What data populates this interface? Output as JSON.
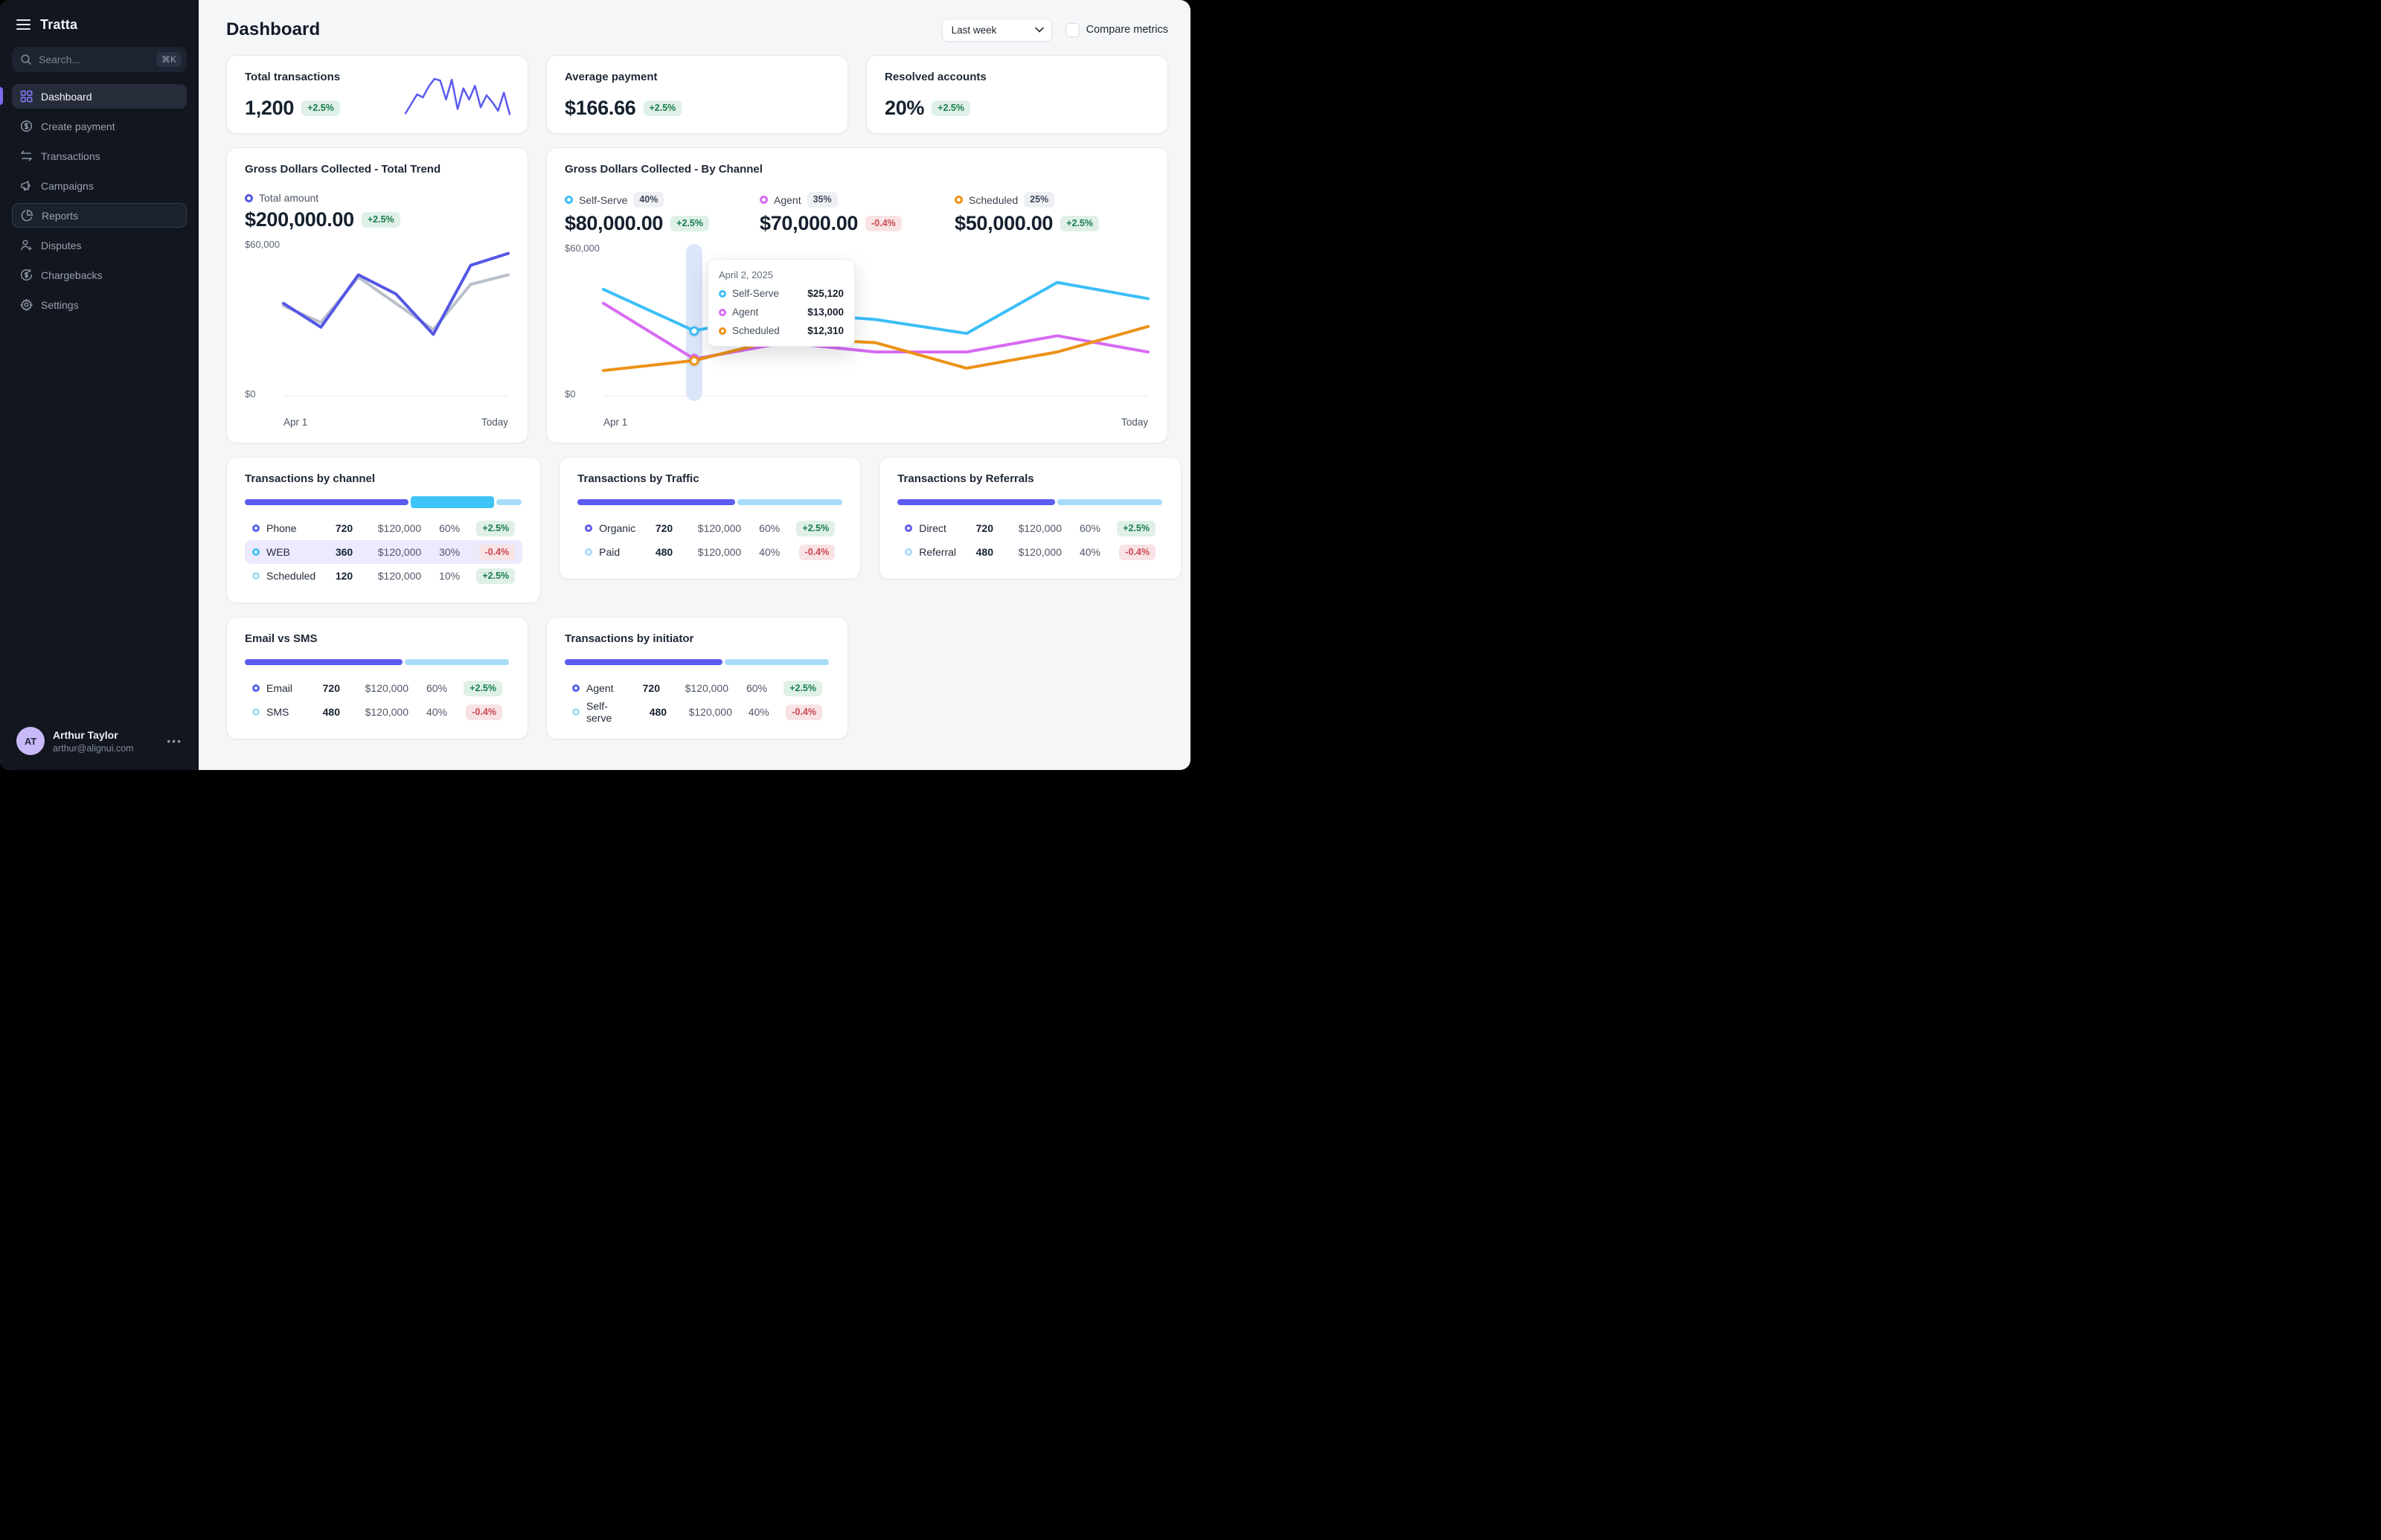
{
  "app": {
    "brand": "Tratta"
  },
  "sidebar": {
    "search": {
      "placeholder": "Search...",
      "shortcut": "⌘K"
    },
    "items": [
      {
        "label": "Dashboard"
      },
      {
        "label": "Create payment"
      },
      {
        "label": "Transactions"
      },
      {
        "label": "Campaigns"
      },
      {
        "label": "Reports"
      },
      {
        "label": "Disputes"
      },
      {
        "label": "Chargebacks"
      },
      {
        "label": "Settings"
      }
    ],
    "user": {
      "initials": "AT",
      "name": "Arthur Taylor",
      "email": "arthur@alignui.com",
      "menu": "•••"
    }
  },
  "header": {
    "title": "Dashboard",
    "range": "Last week",
    "compare": "Compare metrics"
  },
  "kpis": [
    {
      "title": "Total transactions",
      "value": "1,200",
      "delta": "+2.5%"
    },
    {
      "title": "Average payment",
      "value": "$166.66",
      "delta": "+2.5%"
    },
    {
      "title": "Resolved accounts",
      "value": "20%",
      "delta": "+2.5%"
    }
  ],
  "trend": {
    "title": "Gross Dollars Collected - Total Trend",
    "legend": "Total amount",
    "value": "$200,000.00",
    "delta": "+2.5%",
    "y_top": "$60,000",
    "y_bottom": "$0",
    "x_start": "Apr 1",
    "x_end": "Today"
  },
  "channel": {
    "title": "Gross Dollars Collected - By Channel",
    "stats": [
      {
        "label": "Self-Serve",
        "share": "40%",
        "value": "$80,000.00",
        "delta": "+2.5%",
        "color": "#3BBEF7"
      },
      {
        "label": "Agent",
        "share": "35%",
        "value": "$70,000.00",
        "delta": "-0.4%",
        "color": "#D76AF2"
      },
      {
        "label": "Scheduled",
        "share": "25%",
        "value": "$50,000.00",
        "delta": "+2.5%",
        "color": "#EC9215"
      }
    ],
    "tooltip": {
      "date": "April 2, 2025",
      "rows": [
        {
          "label": "Self-Serve",
          "value": "$25,120",
          "color": "#3BBEF7"
        },
        {
          "label": "Agent",
          "value": "$13,000",
          "color": "#D76AF2"
        },
        {
          "label": "Scheduled",
          "value": "$12,310",
          "color": "#EC9215"
        }
      ]
    },
    "y_top": "$60,000",
    "y_bottom": "$0",
    "x_start": "Apr 1",
    "x_end": "Today"
  },
  "tables": {
    "channel": {
      "title": "Transactions by channel",
      "bar": [
        {
          "pct": 59,
          "color": "#5B5BEF"
        },
        {
          "pct": 30,
          "color": "#3EC3F7",
          "tall": true
        },
        {
          "pct": 9,
          "color": "#A6DCF8"
        }
      ],
      "rows": [
        {
          "label": "Phone",
          "color": "#5B5BEF",
          "count": "720",
          "amount": "$120,000",
          "pct": "60%",
          "delta": "+2.5%"
        },
        {
          "label": "WEB",
          "color": "#3EC3F7",
          "count": "360",
          "amount": "$120,000",
          "pct": "30%",
          "delta": "-0.4%"
        },
        {
          "label": "Scheduled",
          "color": "#A6DCF8",
          "count": "120",
          "amount": "$120,000",
          "pct": "10%",
          "delta": "+2.5%"
        }
      ]
    },
    "traffic": {
      "title": "Transactions by Traffic",
      "bar": [
        {
          "pct": 59.5,
          "color": "#5B5BEF"
        },
        {
          "pct": 39.5,
          "color": "#A6DCF8"
        }
      ],
      "rows": [
        {
          "label": "Organic",
          "color": "#5B5BEF",
          "count": "720",
          "amount": "$120,000",
          "pct": "60%",
          "delta": "+2.5%"
        },
        {
          "label": "Paid",
          "color": "#A6DCF8",
          "count": "480",
          "amount": "$120,000",
          "pct": "40%",
          "delta": "-0.4%"
        }
      ]
    },
    "referrals": {
      "title": "Transactions by Referrals",
      "bar": [
        {
          "pct": 59.5,
          "color": "#5B5BEF"
        },
        {
          "pct": 39.5,
          "color": "#A6DCF8"
        }
      ],
      "rows": [
        {
          "label": "Direct",
          "color": "#5B5BEF",
          "count": "720",
          "amount": "$120,000",
          "pct": "60%",
          "delta": "+2.5%"
        },
        {
          "label": "Referral",
          "color": "#A6DCF8",
          "count": "480",
          "amount": "$120,000",
          "pct": "40%",
          "delta": "-0.4%"
        }
      ]
    },
    "emailsms": {
      "title": "Email vs SMS",
      "bar": [
        {
          "pct": 59.5,
          "color": "#5B5BEF"
        },
        {
          "pct": 39.5,
          "color": "#A6DCF8"
        }
      ],
      "rows": [
        {
          "label": "Email",
          "color": "#5B5BEF",
          "count": "720",
          "amount": "$120,000",
          "pct": "60%",
          "delta": "+2.5%"
        },
        {
          "label": "SMS",
          "color": "#A6DCF8",
          "count": "480",
          "amount": "$120,000",
          "pct": "40%",
          "delta": "-0.4%"
        }
      ]
    },
    "initiator": {
      "title": "Transactions by initiator",
      "bar": [
        {
          "pct": 59.5,
          "color": "#5B5BEF"
        },
        {
          "pct": 39.5,
          "color": "#A6DCF8"
        }
      ],
      "rows": [
        {
          "label": "Agent",
          "color": "#5B5BEF",
          "count": "720",
          "amount": "$120,000",
          "pct": "60%",
          "delta": "+2.5%"
        },
        {
          "label": "Self-serve",
          "color": "#A6DCF8",
          "count": "480",
          "amount": "$120,000",
          "pct": "40%",
          "delta": "-0.4%"
        }
      ]
    }
  },
  "colors": {
    "indigo": "#5B5BEF",
    "cyan": "#3EC3F7",
    "light_blue": "#A6DCF8",
    "magenta": "#D76AF2",
    "orange": "#EC9215",
    "gray_line": "#B9C0CC",
    "green": "#187C4C",
    "red": "#CB4850",
    "sidebar_bg": "#12161F",
    "accent_purple": "#7B6CF2",
    "band": "#DBE6F9"
  },
  "chart_data": [
    {
      "type": "line",
      "name": "total-transactions-sparkline",
      "ylim": [
        0,
        100
      ],
      "color": "#5B5BEF",
      "width": 2.5,
      "values": [
        8,
        30,
        52,
        45,
        70,
        88,
        84,
        40,
        86,
        18,
        66,
        40,
        72,
        22,
        50,
        34,
        14,
        56,
        6
      ]
    },
    {
      "type": "line",
      "name": "gross-dollars-total-trend",
      "title": "Gross Dollars Collected - Total Trend",
      "x": [
        "Apr 1",
        "",
        "",
        "",
        "",
        "",
        "Today"
      ],
      "ylim": [
        0,
        60000
      ],
      "yticks": [
        "$0",
        "$60,000"
      ],
      "grid": false,
      "legend_position": "top",
      "series": [
        {
          "name": "previous period (comparison)",
          "color": "#B9C0CC",
          "width": 4,
          "values": [
            35000,
            28000,
            47000,
            36000,
            25000,
            44000,
            48000
          ]
        },
        {
          "name": "Total amount",
          "color": "#5457E5",
          "width": 4,
          "values": [
            36000,
            26000,
            48000,
            40000,
            23000,
            52000,
            57000
          ]
        }
      ]
    },
    {
      "type": "line",
      "name": "gross-dollars-by-channel",
      "title": "Gross Dollars Collected - By Channel",
      "x": [
        "Apr 1",
        "",
        "",
        "",
        "",
        "",
        "Today"
      ],
      "ylim": [
        0,
        60000
      ],
      "yticks": [
        "$0",
        "$60,000"
      ],
      "grid": false,
      "highlight_index": 1,
      "highlight_label": "April 2, 2025",
      "series": [
        {
          "name": "Agent",
          "color": "#D76AF2",
          "width": 4,
          "values": [
            37000,
            13000,
            20000,
            16000,
            16000,
            23000,
            16000
          ]
        },
        {
          "name": "Scheduled",
          "color": "#EC9215",
          "width": 4,
          "values": [
            8000,
            12310,
            22000,
            20000,
            9000,
            16000,
            27000
          ]
        },
        {
          "name": "Self-Serve",
          "color": "#3BBEF7",
          "width": 4,
          "values": [
            43000,
            25120,
            33000,
            30000,
            24000,
            46000,
            39000
          ]
        }
      ]
    }
  ]
}
